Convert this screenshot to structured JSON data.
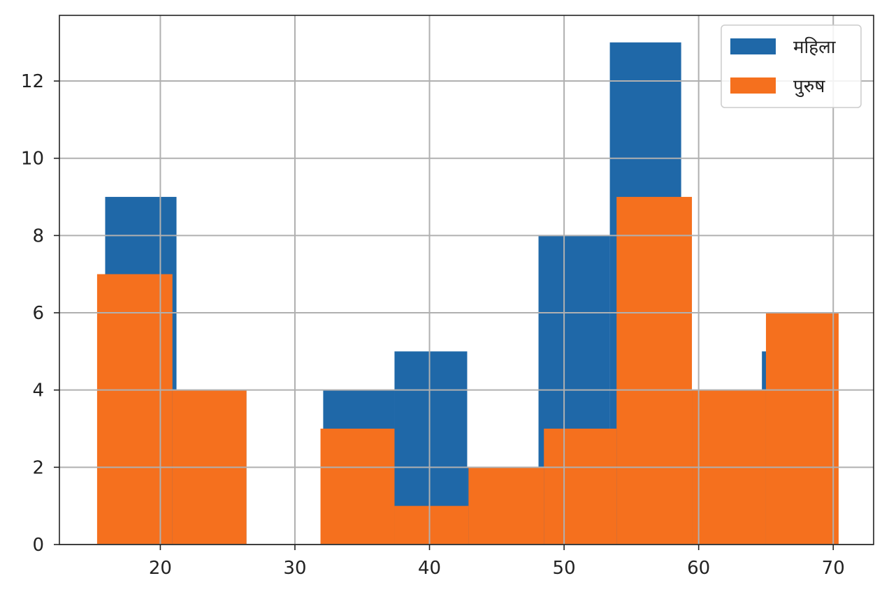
{
  "chart_data": {
    "type": "bar",
    "title": "",
    "xlabel": "",
    "ylabel": "",
    "xlim": [
      12.5,
      73
    ],
    "ylim": [
      0,
      13.7
    ],
    "xticks": [
      20,
      30,
      40,
      50,
      60,
      70
    ],
    "yticks": [
      0,
      2,
      4,
      6,
      8,
      10,
      12
    ],
    "grid": true,
    "legend_position": "top-right",
    "series": [
      {
        "name": "महिला",
        "color": "#1f68a8",
        "bins": [
          {
            "x0": 15.9,
            "x1": 21.2,
            "value": 9
          },
          {
            "x0": 21.2,
            "x1": 26.4,
            "value": 4
          },
          {
            "x0": 32.1,
            "x1": 37.4,
            "value": 4
          },
          {
            "x0": 37.4,
            "x1": 42.8,
            "value": 5
          },
          {
            "x0": 42.8,
            "x1": 48.1,
            "value": 2
          },
          {
            "x0": 48.1,
            "x1": 53.4,
            "value": 8
          },
          {
            "x0": 53.4,
            "x1": 58.7,
            "value": 13
          },
          {
            "x0": 58.7,
            "x1": 64.7,
            "value": 4
          },
          {
            "x0": 64.7,
            "x1": 70.0,
            "value": 5
          }
        ]
      },
      {
        "name": "पुरुष",
        "color": "#f5701e",
        "bins": [
          {
            "x0": 15.3,
            "x1": 20.9,
            "value": 7
          },
          {
            "x0": 20.9,
            "x1": 26.4,
            "value": 4
          },
          {
            "x0": 31.9,
            "x1": 37.4,
            "value": 3
          },
          {
            "x0": 37.4,
            "x1": 42.9,
            "value": 1
          },
          {
            "x0": 42.9,
            "x1": 48.5,
            "value": 2
          },
          {
            "x0": 48.5,
            "x1": 53.9,
            "value": 3
          },
          {
            "x0": 53.9,
            "x1": 59.5,
            "value": 9
          },
          {
            "x0": 59.5,
            "x1": 65.0,
            "value": 4
          },
          {
            "x0": 65.0,
            "x1": 70.4,
            "value": 6
          }
        ]
      }
    ]
  }
}
